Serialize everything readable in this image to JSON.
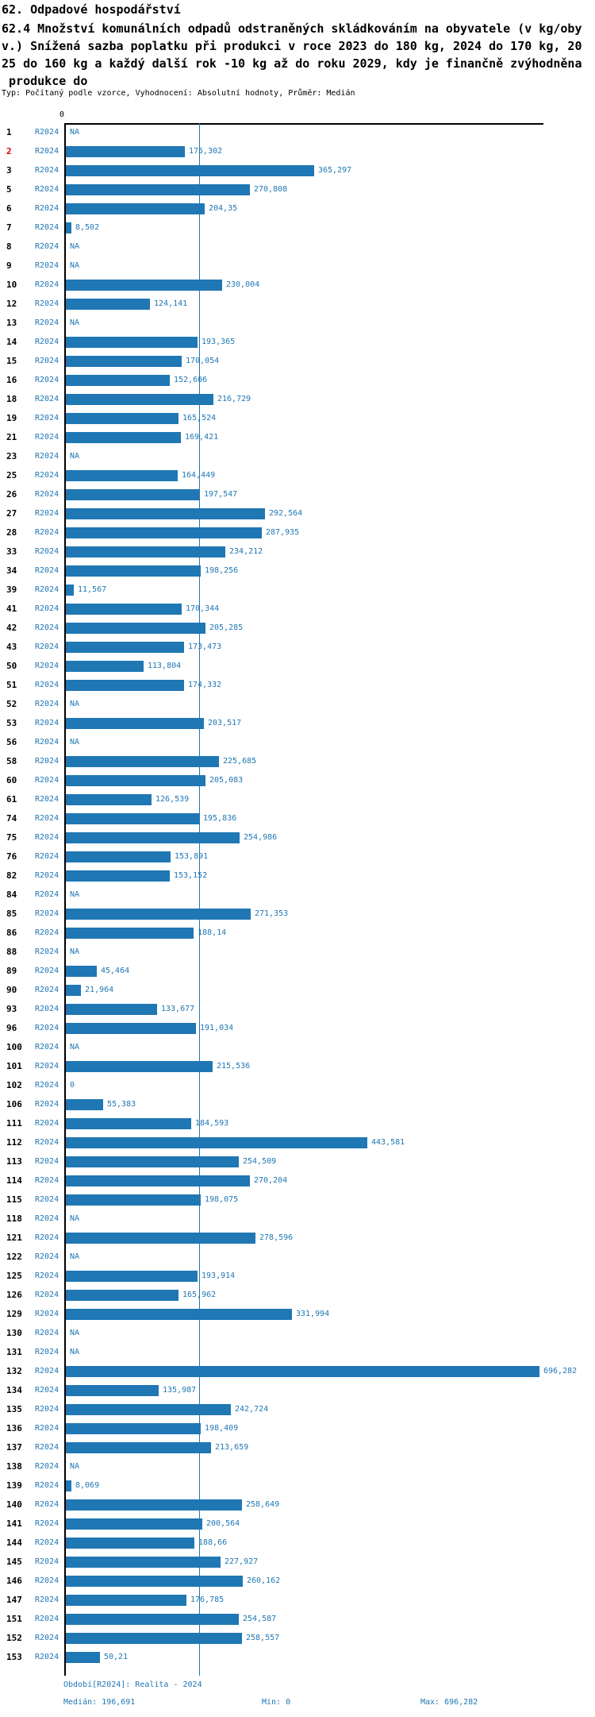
{
  "header": {
    "title": "62. Odpadové hospodářství",
    "description_lines": [
      "62.4 Množství komunálních odpadů odstraněných skládkováním na obyvatele (v kg/oby",
      "v.) Snížená sazba poplatku při produkci v roce 2023 do 180 kg, 2024 do 170 kg, 20",
      "25 do 160 kg a každý další rok -10 kg až do roku 2029, kdy je finančně zvýhodněna",
      " produkce do"
    ],
    "meta": "Typ: Počítaný podle vzorce, Vyhodnocení: Absolutní hodnoty, Průměr: Medián"
  },
  "chart_data": {
    "type": "bar",
    "orientation": "horizontal",
    "title": "62.4 Množství komunálních odpadů odstraněných skládkováním na obyvatele (v kg/obyv.)",
    "series_label": "R2024",
    "axis": {
      "zero_label": "0",
      "min": 0,
      "max": 696.282,
      "median": 196.691
    },
    "highlighted_row_id": "2",
    "colors": {
      "bar": "#1f77b4",
      "median_line": "#1f77b4",
      "blue_text": "#1f77b4",
      "highlight_red": "#e00000"
    },
    "rows": [
      {
        "id": "1",
        "value": null,
        "label": "NA"
      },
      {
        "id": "2",
        "value": 175.302,
        "label": "175,302"
      },
      {
        "id": "3",
        "value": 365.297,
        "label": "365,297"
      },
      {
        "id": "5",
        "value": 270.808,
        "label": "270,808"
      },
      {
        "id": "6",
        "value": 204.35,
        "label": "204,35"
      },
      {
        "id": "7",
        "value": 8.502,
        "label": "8,502"
      },
      {
        "id": "8",
        "value": null,
        "label": "NA"
      },
      {
        "id": "9",
        "value": null,
        "label": "NA"
      },
      {
        "id": "10",
        "value": 230.004,
        "label": "230,004"
      },
      {
        "id": "12",
        "value": 124.141,
        "label": "124,141"
      },
      {
        "id": "13",
        "value": null,
        "label": "NA"
      },
      {
        "id": "14",
        "value": 193.365,
        "label": "193,365"
      },
      {
        "id": "15",
        "value": 170.054,
        "label": "170,054"
      },
      {
        "id": "16",
        "value": 152.606,
        "label": "152,606"
      },
      {
        "id": "18",
        "value": 216.729,
        "label": "216,729"
      },
      {
        "id": "19",
        "value": 165.524,
        "label": "165,524"
      },
      {
        "id": "21",
        "value": 169.421,
        "label": "169,421"
      },
      {
        "id": "23",
        "value": null,
        "label": "NA"
      },
      {
        "id": "25",
        "value": 164.449,
        "label": "164,449"
      },
      {
        "id": "26",
        "value": 197.547,
        "label": "197,547"
      },
      {
        "id": "27",
        "value": 292.564,
        "label": "292,564"
      },
      {
        "id": "28",
        "value": 287.935,
        "label": "287,935"
      },
      {
        "id": "33",
        "value": 234.212,
        "label": "234,212"
      },
      {
        "id": "34",
        "value": 198.256,
        "label": "198,256"
      },
      {
        "id": "39",
        "value": 11.567,
        "label": "11,567"
      },
      {
        "id": "41",
        "value": 170.344,
        "label": "170,344"
      },
      {
        "id": "42",
        "value": 205.285,
        "label": "205,285"
      },
      {
        "id": "43",
        "value": 173.473,
        "label": "173,473"
      },
      {
        "id": "50",
        "value": 113.804,
        "label": "113,804"
      },
      {
        "id": "51",
        "value": 174.332,
        "label": "174,332"
      },
      {
        "id": "52",
        "value": null,
        "label": "NA"
      },
      {
        "id": "53",
        "value": 203.517,
        "label": "203,517"
      },
      {
        "id": "56",
        "value": null,
        "label": "NA"
      },
      {
        "id": "58",
        "value": 225.685,
        "label": "225,685"
      },
      {
        "id": "60",
        "value": 205.083,
        "label": "205,083"
      },
      {
        "id": "61",
        "value": 126.539,
        "label": "126,539"
      },
      {
        "id": "74",
        "value": 195.836,
        "label": "195,836"
      },
      {
        "id": "75",
        "value": 254.986,
        "label": "254,986"
      },
      {
        "id": "76",
        "value": 153.891,
        "label": "153,891"
      },
      {
        "id": "82",
        "value": 153.152,
        "label": "153,152"
      },
      {
        "id": "84",
        "value": null,
        "label": "NA"
      },
      {
        "id": "85",
        "value": 271.353,
        "label": "271,353"
      },
      {
        "id": "86",
        "value": 188.14,
        "label": "188,14"
      },
      {
        "id": "88",
        "value": null,
        "label": "NA"
      },
      {
        "id": "89",
        "value": 45.464,
        "label": "45,464"
      },
      {
        "id": "90",
        "value": 21.964,
        "label": "21,964"
      },
      {
        "id": "93",
        "value": 133.677,
        "label": "133,677"
      },
      {
        "id": "96",
        "value": 191.034,
        "label": "191,034"
      },
      {
        "id": "100",
        "value": null,
        "label": "NA"
      },
      {
        "id": "101",
        "value": 215.536,
        "label": "215,536"
      },
      {
        "id": "102",
        "value": 0,
        "label": "0"
      },
      {
        "id": "106",
        "value": 55.383,
        "label": "55,383"
      },
      {
        "id": "111",
        "value": 184.593,
        "label": "184,593"
      },
      {
        "id": "112",
        "value": 443.581,
        "label": "443,581"
      },
      {
        "id": "113",
        "value": 254.509,
        "label": "254,509"
      },
      {
        "id": "114",
        "value": 270.204,
        "label": "270,204"
      },
      {
        "id": "115",
        "value": 198.075,
        "label": "198,075"
      },
      {
        "id": "118",
        "value": null,
        "label": "NA"
      },
      {
        "id": "121",
        "value": 278.596,
        "label": "278,596"
      },
      {
        "id": "122",
        "value": null,
        "label": "NA"
      },
      {
        "id": "125",
        "value": 193.914,
        "label": "193,914"
      },
      {
        "id": "126",
        "value": 165.962,
        "label": "165,962"
      },
      {
        "id": "129",
        "value": 331.994,
        "label": "331,994"
      },
      {
        "id": "130",
        "value": null,
        "label": "NA"
      },
      {
        "id": "131",
        "value": null,
        "label": "NA"
      },
      {
        "id": "132",
        "value": 696.282,
        "label": "696,282"
      },
      {
        "id": "134",
        "value": 135.987,
        "label": "135,987"
      },
      {
        "id": "135",
        "value": 242.724,
        "label": "242,724"
      },
      {
        "id": "136",
        "value": 198.409,
        "label": "198,409"
      },
      {
        "id": "137",
        "value": 213.659,
        "label": "213,659"
      },
      {
        "id": "138",
        "value": null,
        "label": "NA"
      },
      {
        "id": "139",
        "value": 8.069,
        "label": "8,069"
      },
      {
        "id": "140",
        "value": 258.649,
        "label": "258,649"
      },
      {
        "id": "141",
        "value": 200.564,
        "label": "200,564"
      },
      {
        "id": "144",
        "value": 188.66,
        "label": "188,66"
      },
      {
        "id": "145",
        "value": 227.927,
        "label": "227,927"
      },
      {
        "id": "146",
        "value": 260.162,
        "label": "260,162"
      },
      {
        "id": "147",
        "value": 176.785,
        "label": "176,785"
      },
      {
        "id": "151",
        "value": 254.587,
        "label": "254,587"
      },
      {
        "id": "152",
        "value": 258.557,
        "label": "258,557"
      },
      {
        "id": "153",
        "value": 50.21,
        "label": "50,21"
      }
    ]
  },
  "footer": {
    "period": "Období[R2024]: Realita - 2024",
    "median": "Medián: 196,691",
    "min": "Min: 0",
    "max": "Max: 696,282"
  }
}
